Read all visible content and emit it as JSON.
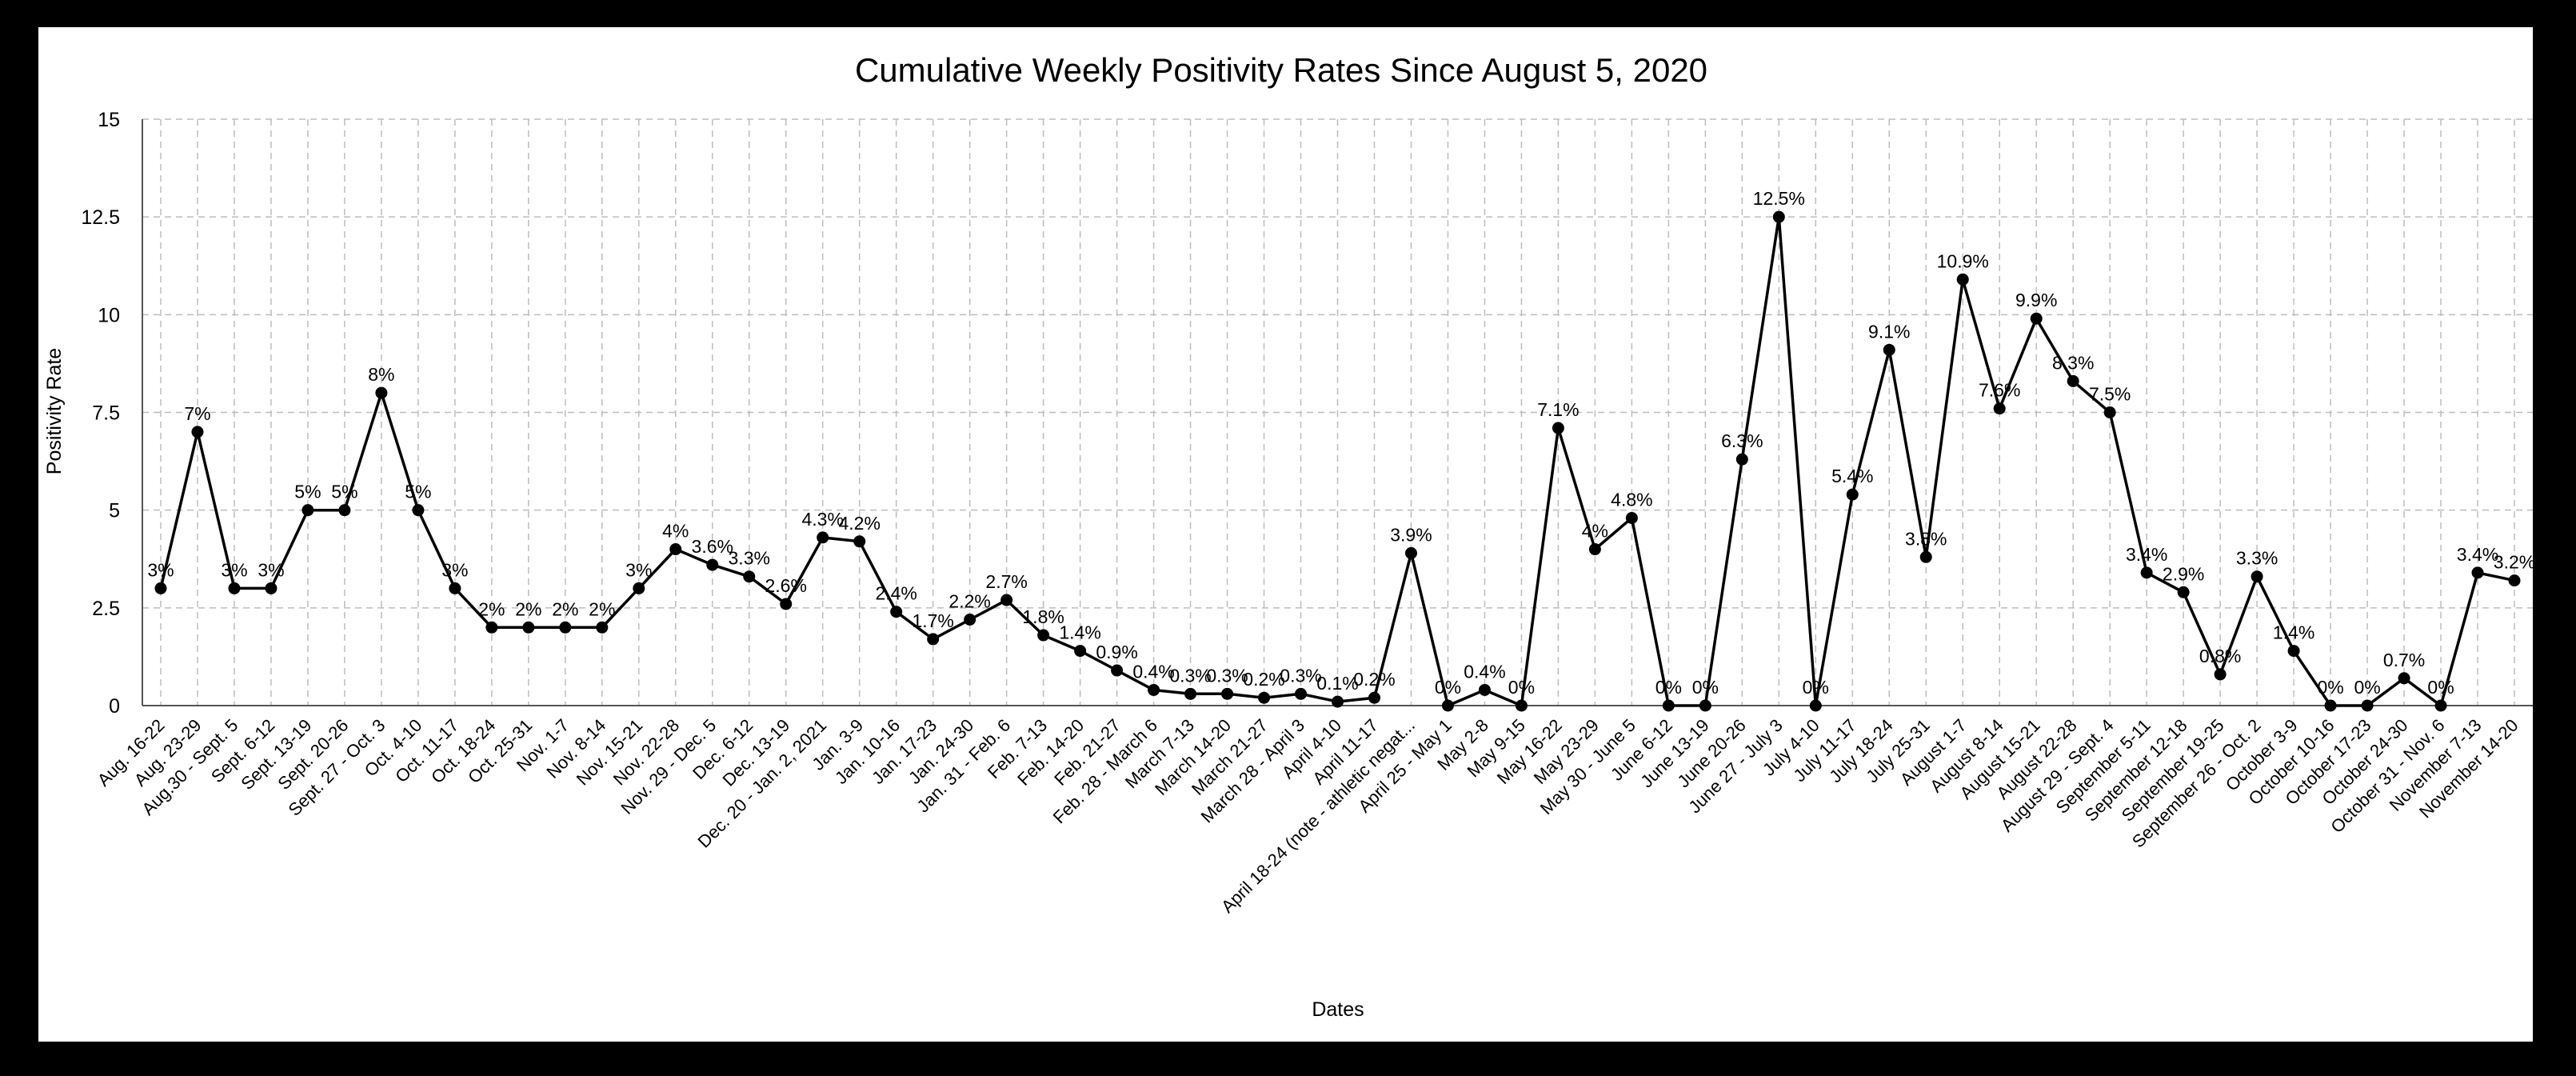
{
  "chart_data": {
    "type": "line",
    "title": "Cumulative Weekly Positivity Rates Since August 5, 2020",
    "xlabel": "Dates",
    "ylabel": "Positivity Rate",
    "ylim": [
      0,
      15
    ],
    "yticks": [
      "0",
      "2.5",
      "5",
      "7.5",
      "10",
      "12.5",
      "15"
    ],
    "grid": true,
    "legend": "none",
    "categories": [
      "Aug. 16-22",
      "Aug. 23-29",
      "Aug.30 - Sept. 5",
      "Sept. 6-12",
      "Sept. 13-19",
      "Sept. 20-26",
      "Sept. 27 - Oct. 3",
      "Oct. 4-10",
      "Oct. 11-17",
      "Oct. 18-24",
      "Oct. 25-31",
      "Nov. 1-7",
      "Nov. 8-14",
      "Nov. 15-21",
      "Nov. 22-28",
      "Nov. 29 - Dec. 5",
      "Dec. 6-12",
      "Dec. 13-19",
      "Dec. 20 - Jan. 2, 2021",
      "Jan. 3-9",
      "Jan. 10-16",
      "Jan. 17-23",
      "Jan. 24-30",
      "Jan. 31 - Feb. 6",
      "Feb. 7-13",
      "Feb. 14-20",
      "Feb. 21-27",
      "Feb. 28 - March 6",
      "March 7-13",
      "March 14-20",
      "March 21-27",
      "March 28 - April 3",
      "April 4-10",
      "April 11-17",
      "April 18-24 (note - athletic negat...",
      "April 25 - May 1",
      "May 2-8",
      "May 9-15",
      "May 16-22",
      "May 23-29",
      "May 30 - June 5",
      "June 6-12",
      "June 13-19",
      "June 20-26",
      "June 27 - July 3",
      "July 4-10",
      "July 11-17",
      "July 18-24",
      "July 25-31",
      "August 1-7",
      "August 8-14",
      "August 15-21",
      "August 22-28",
      "August 29 - Sept. 4",
      "September 5-11",
      "September 12-18",
      "September 19-25",
      "September 26 - Oct. 2",
      "October 3-9",
      "October 10-16",
      "October 17-23",
      "October 24-30",
      "October 31 - Nov. 6",
      "November 7-13",
      "November 14-20"
    ],
    "series": [
      {
        "values": [
          3,
          7,
          3,
          3,
          5,
          5,
          8,
          5,
          3,
          2,
          2,
          2,
          2,
          3,
          4,
          3.6,
          3.3,
          2.6,
          4.3,
          4.2,
          2.4,
          1.7,
          2.2,
          2.7,
          1.8,
          1.4,
          0.9,
          0.4,
          0.3,
          0.3,
          0.2,
          0.3,
          0.1,
          0.2,
          3.9,
          0,
          0.4,
          0,
          7.1,
          4,
          4.8,
          0,
          0,
          6.3,
          12.5,
          0,
          5.4,
          9.1,
          3.8,
          10.9,
          7.6,
          9.9,
          8.3,
          7.5,
          3.4,
          2.9,
          0.8,
          3.3,
          1.4,
          0,
          0,
          0.7,
          0,
          3.4,
          3.2
        ],
        "labels": [
          "3%",
          "7%",
          "3%",
          "3%",
          "5%",
          "5%",
          "8%",
          "5%",
          "3%",
          "2%",
          "2%",
          "2%",
          "2%",
          "3%",
          "4%",
          "3.6%",
          "3.3%",
          "2.6%",
          "4.3%",
          "4.2%",
          "2.4%",
          "1.7%",
          "2.2%",
          "2.7%",
          "1.8%",
          "1.4%",
          "0.9%",
          "0.4%",
          "0.3%",
          "0.3%",
          "0.2%",
          "0.3%",
          "0.1%",
          "0.2%",
          "3.9%",
          "0%",
          "0.4%",
          "0%",
          "7.1%",
          "4%",
          "4.8%",
          "0%",
          "0%",
          "6.3%",
          "12.5%",
          "0%",
          "5.4%",
          "9.1%",
          "3.8%",
          "10.9%",
          "7.6%",
          "9.9%",
          "8.3%",
          "7.5%",
          "3.4%",
          "2.9%",
          "0.8%",
          "3.3%",
          "1.4%",
          "0%",
          "0%",
          "0.7%",
          "0%",
          "3.4%",
          "3.2%"
        ],
        "color": "#000000"
      }
    ]
  }
}
